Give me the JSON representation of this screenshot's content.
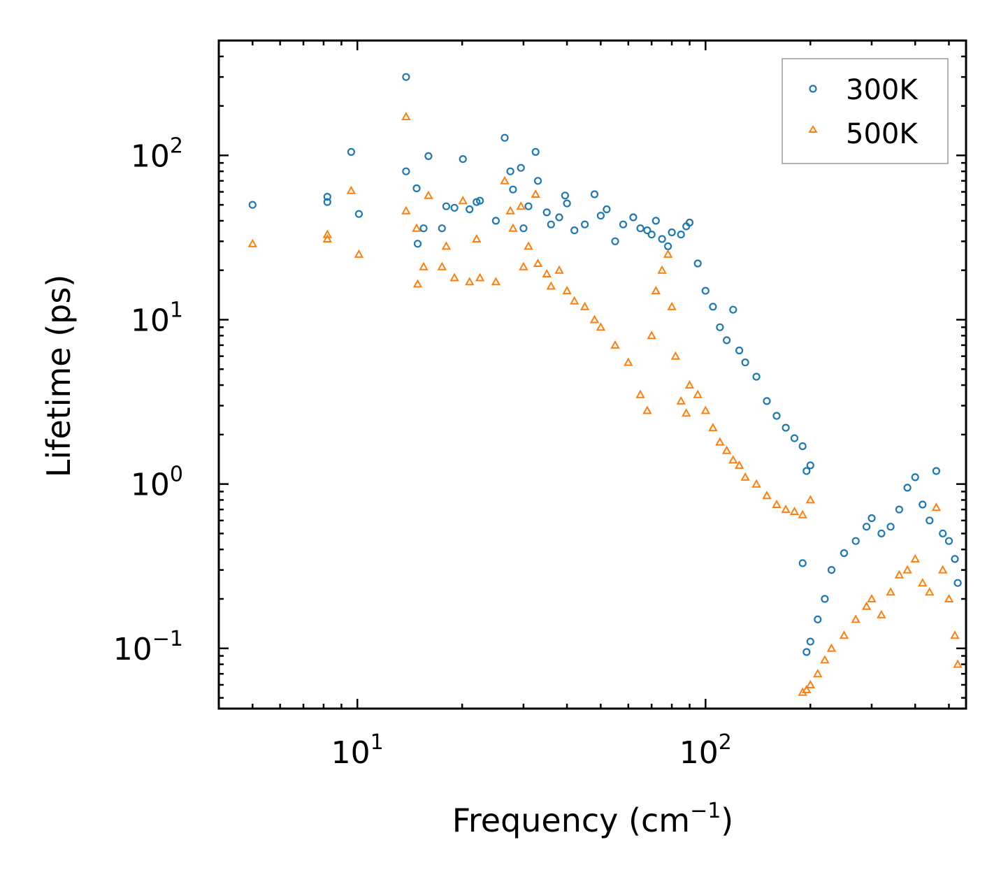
{
  "chart_data": {
    "type": "scatter",
    "xscale": "log",
    "yscale": "log",
    "xlabel": "Frequency (cm",
    "xlabel_sup": "−1",
    "xlabel_end": ")",
    "ylabel": "Lifetime (ps)",
    "xlim": [
      4.0,
      560
    ],
    "ylim": [
      0.043,
      500
    ],
    "xticks": [
      {
        "base": "10",
        "exp": "1",
        "value": 10
      },
      {
        "base": "10",
        "exp": "2",
        "value": 100
      }
    ],
    "yticks": [
      {
        "base": "10",
        "exp": "−1",
        "value": 0.1
      },
      {
        "base": "10",
        "exp": "0",
        "value": 1
      },
      {
        "base": "10",
        "exp": "1",
        "value": 10
      },
      {
        "base": "10",
        "exp": "2",
        "value": 100
      }
    ],
    "legend_position": "top-right",
    "colors": {
      "300K": "#1f77b4",
      "500K": "#ff7f0e"
    },
    "series": [
      {
        "name": "300K",
        "marker": "circle",
        "color": "#1f77b4",
        "points": [
          [
            5.0,
            50
          ],
          [
            8.2,
            56
          ],
          [
            8.2,
            52
          ],
          [
            9.6,
            105
          ],
          [
            10.1,
            44
          ],
          [
            13.8,
            300
          ],
          [
            13.8,
            80
          ],
          [
            14.8,
            63
          ],
          [
            14.9,
            29
          ],
          [
            15.5,
            36
          ],
          [
            16.0,
            99
          ],
          [
            17.5,
            36
          ],
          [
            18.0,
            49
          ],
          [
            19.0,
            48
          ],
          [
            20.1,
            95
          ],
          [
            21.0,
            47
          ],
          [
            22.0,
            52
          ],
          [
            22.5,
            53
          ],
          [
            25.0,
            40
          ],
          [
            26.5,
            128
          ],
          [
            27.5,
            80
          ],
          [
            28.0,
            62
          ],
          [
            29.5,
            84
          ],
          [
            30.0,
            36
          ],
          [
            31.0,
            49
          ],
          [
            32.5,
            105
          ],
          [
            33.0,
            70
          ],
          [
            35.0,
            45
          ],
          [
            36.0,
            38
          ],
          [
            38.0,
            42
          ],
          [
            39.5,
            57
          ],
          [
            40.0,
            51
          ],
          [
            42.0,
            35
          ],
          [
            45.0,
            38
          ],
          [
            48.0,
            58
          ],
          [
            50.0,
            43
          ],
          [
            52.0,
            47
          ],
          [
            55.0,
            30
          ],
          [
            58.0,
            38
          ],
          [
            62.0,
            42
          ],
          [
            65.0,
            36
          ],
          [
            68.0,
            35
          ],
          [
            70.0,
            33
          ],
          [
            72.0,
            40
          ],
          [
            75.0,
            31
          ],
          [
            78.0,
            28
          ],
          [
            80.0,
            34
          ],
          [
            85.0,
            33
          ],
          [
            88.0,
            37
          ],
          [
            90.0,
            39
          ],
          [
            95.0,
            22
          ],
          [
            100.0,
            15
          ],
          [
            105.0,
            12
          ],
          [
            110.0,
            9
          ],
          [
            115.0,
            7.5
          ],
          [
            120.0,
            11.5
          ],
          [
            125.0,
            6.5
          ],
          [
            130.0,
            5.5
          ],
          [
            140.0,
            4.5
          ],
          [
            150.0,
            3.2
          ],
          [
            160.0,
            2.6
          ],
          [
            170.0,
            2.2
          ],
          [
            180.0,
            1.9
          ],
          [
            190.0,
            1.7
          ],
          [
            195.0,
            1.2
          ],
          [
            200.0,
            1.3
          ],
          [
            190.0,
            0.33
          ],
          [
            195.0,
            0.095
          ],
          [
            200.0,
            0.11
          ],
          [
            210.0,
            0.15
          ],
          [
            220.0,
            0.2
          ],
          [
            230.0,
            0.3
          ],
          [
            250.0,
            0.38
          ],
          [
            270.0,
            0.45
          ],
          [
            290.0,
            0.55
          ],
          [
            300.0,
            0.62
          ],
          [
            320.0,
            0.5
          ],
          [
            340.0,
            0.55
          ],
          [
            360.0,
            0.7
          ],
          [
            380.0,
            0.95
          ],
          [
            400.0,
            1.1
          ],
          [
            420.0,
            0.75
          ],
          [
            440.0,
            0.6
          ],
          [
            460.0,
            1.2
          ],
          [
            480.0,
            0.5
          ],
          [
            500.0,
            0.45
          ],
          [
            520.0,
            0.35
          ],
          [
            530.0,
            0.25
          ]
        ]
      },
      {
        "name": "500K",
        "marker": "triangle",
        "color": "#ff7f0e",
        "points": [
          [
            5.0,
            29
          ],
          [
            8.2,
            33
          ],
          [
            8.2,
            31
          ],
          [
            9.6,
            61
          ],
          [
            10.1,
            25
          ],
          [
            13.8,
            172
          ],
          [
            13.8,
            46
          ],
          [
            14.8,
            36
          ],
          [
            14.9,
            16.5
          ],
          [
            15.5,
            21
          ],
          [
            16.0,
            57
          ],
          [
            17.5,
            21
          ],
          [
            18.0,
            28
          ],
          [
            19.0,
            18
          ],
          [
            20.1,
            53
          ],
          [
            21.0,
            17
          ],
          [
            22.0,
            31
          ],
          [
            22.5,
            18
          ],
          [
            25.0,
            17
          ],
          [
            26.5,
            70
          ],
          [
            27.5,
            46
          ],
          [
            28.0,
            36
          ],
          [
            29.5,
            49
          ],
          [
            30.0,
            21
          ],
          [
            31.0,
            28
          ],
          [
            32.5,
            58
          ],
          [
            33.0,
            22
          ],
          [
            35.0,
            19
          ],
          [
            36.0,
            16
          ],
          [
            38.0,
            20
          ],
          [
            40.0,
            15
          ],
          [
            42.0,
            13
          ],
          [
            45.0,
            12
          ],
          [
            48.0,
            10
          ],
          [
            50.0,
            9
          ],
          [
            55.0,
            7
          ],
          [
            60.0,
            5.5
          ],
          [
            65.0,
            3.5
          ],
          [
            68.0,
            2.8
          ],
          [
            70.0,
            8
          ],
          [
            72.0,
            15
          ],
          [
            75.0,
            20
          ],
          [
            78.0,
            25
          ],
          [
            80.0,
            12
          ],
          [
            82.0,
            6
          ],
          [
            85.0,
            3.2
          ],
          [
            88.0,
            2.7
          ],
          [
            90.0,
            4
          ],
          [
            95.0,
            3.5
          ],
          [
            100.0,
            2.8
          ],
          [
            105.0,
            2.2
          ],
          [
            110.0,
            1.8
          ],
          [
            115.0,
            1.6
          ],
          [
            120.0,
            1.4
          ],
          [
            125.0,
            1.3
          ],
          [
            130.0,
            1.1
          ],
          [
            140.0,
            1.0
          ],
          [
            150.0,
            0.85
          ],
          [
            160.0,
            0.75
          ],
          [
            170.0,
            0.7
          ],
          [
            180.0,
            0.68
          ],
          [
            190.0,
            0.65
          ],
          [
            200.0,
            0.8
          ],
          [
            190.0,
            0.054
          ],
          [
            195.0,
            0.056
          ],
          [
            200.0,
            0.06
          ],
          [
            210.0,
            0.07
          ],
          [
            220.0,
            0.085
          ],
          [
            230.0,
            0.1
          ],
          [
            250.0,
            0.12
          ],
          [
            270.0,
            0.15
          ],
          [
            290.0,
            0.18
          ],
          [
            300.0,
            0.2
          ],
          [
            320.0,
            0.16
          ],
          [
            340.0,
            0.22
          ],
          [
            360.0,
            0.28
          ],
          [
            380.0,
            0.3
          ],
          [
            400.0,
            0.35
          ],
          [
            420.0,
            0.25
          ],
          [
            440.0,
            0.22
          ],
          [
            460.0,
            0.72
          ],
          [
            480.0,
            0.3
          ],
          [
            500.0,
            0.2
          ],
          [
            520.0,
            0.12
          ],
          [
            530.0,
            0.08
          ]
        ]
      }
    ]
  }
}
